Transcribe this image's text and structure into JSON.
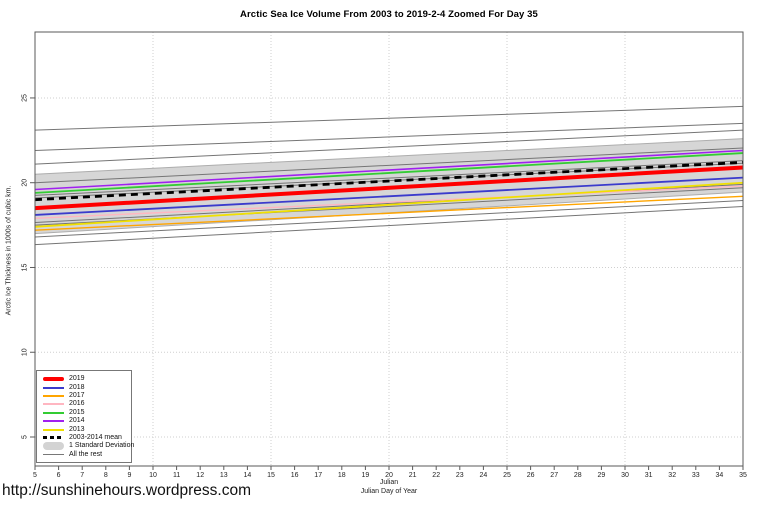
{
  "title": "Arctic Sea Ice Volume From 2003 to 2019-2-4 Zoomed For Day 35",
  "url_caption": "http://sunshinehours.wordpress.com",
  "axes": {
    "y_label": "Arctic Ice Thickness in 1000s of cubic km.",
    "x_label_line1": "Julian",
    "x_label_line2": "Julian Day of Year",
    "x_ticks": [
      5,
      6,
      7,
      8,
      9,
      10,
      11,
      12,
      13,
      14,
      15,
      16,
      17,
      18,
      19,
      20,
      21,
      22,
      23,
      24,
      25,
      26,
      27,
      28,
      29,
      30,
      31,
      32,
      33,
      34,
      35
    ],
    "y_ticks": [
      5,
      10,
      15,
      20,
      25
    ],
    "x_grid": [
      10,
      15,
      20,
      25,
      30,
      35
    ],
    "grid_color": "#CFCFCF",
    "box_color": "#5A5A5A"
  },
  "chart_data": {
    "type": "line",
    "title": "Arctic Sea Ice Volume From 2003 to 2019-2-4 Zoomed For Day 35",
    "xlabel": "Julian Day of Year",
    "ylabel": "Arctic Ice Thickness in 1000s of cubic km.",
    "xlim": [
      5,
      35
    ],
    "ylim": [
      3.29,
      28.89
    ],
    "grid": true,
    "legend_position": "bottom-left",
    "x": [
      5,
      35
    ],
    "series": [
      {
        "name": "2019",
        "color": "#FF0000",
        "width": 4,
        "z": 7,
        "values": [
          18.5,
          20.9
        ]
      },
      {
        "name": "2018",
        "color": "#3B3BCC",
        "width": 1.8,
        "z": 4,
        "values": [
          18.1,
          20.3
        ]
      },
      {
        "name": "2017",
        "color": "#FFA500",
        "width": 1.4,
        "z": 2,
        "values": [
          17.2,
          19.2
        ]
      },
      {
        "name": "2016",
        "color": "#FFB6C1",
        "width": 1.4,
        "z": 1,
        "values": [
          17.9,
          19.8
        ]
      },
      {
        "name": "2015",
        "color": "#33CC33",
        "width": 1.8,
        "z": 5,
        "values": [
          19.4,
          21.75
        ]
      },
      {
        "name": "2014",
        "color": "#A020F0",
        "width": 1.6,
        "z": 6,
        "values": [
          19.6,
          21.9
        ]
      },
      {
        "name": "2013",
        "color": "#F0E000",
        "width": 1.8,
        "z": 3,
        "values": [
          17.4,
          20.0
        ]
      },
      {
        "name": "2003-2014 mean",
        "color": "#000000",
        "width": 2.8,
        "dash": "7,5",
        "z": 8,
        "values": [
          19.0,
          21.2
        ]
      }
    ],
    "band": {
      "name": "1 Standard Deviation",
      "color": "#D6D6D6",
      "edge_color": "#ADADAD",
      "top": [
        20.5,
        22.6
      ],
      "bottom": [
        17.0,
        19.45
      ]
    },
    "rest": {
      "name": "All the rest",
      "color": "#757575",
      "lines": [
        [
          23.1,
          24.5
        ],
        [
          21.9,
          23.5
        ],
        [
          21.1,
          23.1
        ],
        [
          20.0,
          22.05
        ],
        [
          19.25,
          21.3
        ],
        [
          19.1,
          21.15
        ],
        [
          17.65,
          19.9
        ],
        [
          17.5,
          19.7
        ],
        [
          16.8,
          18.95
        ],
        [
          16.35,
          18.6
        ]
      ]
    }
  },
  "legend": {
    "items": [
      {
        "label": "2019",
        "swatch": "thick",
        "color": "#FF0000"
      },
      {
        "label": "2018",
        "swatch": "line",
        "color": "#3B3BCC"
      },
      {
        "label": "2017",
        "swatch": "line",
        "color": "#FFA500"
      },
      {
        "label": "2016",
        "swatch": "line",
        "color": "#FFB6C1"
      },
      {
        "label": "2015",
        "swatch": "line",
        "color": "#33CC33"
      },
      {
        "label": "2014",
        "swatch": "line",
        "color": "#A020F0"
      },
      {
        "label": "2013",
        "swatch": "line",
        "color": "#F0E000"
      },
      {
        "label": "2003-2014 mean",
        "swatch": "dashed",
        "color": "#000000"
      },
      {
        "label": "1 Standard Deviation",
        "swatch": "band",
        "color": "#D3D3D3"
      },
      {
        "label": "All the rest",
        "swatch": "thin",
        "color": "#787878"
      }
    ]
  }
}
